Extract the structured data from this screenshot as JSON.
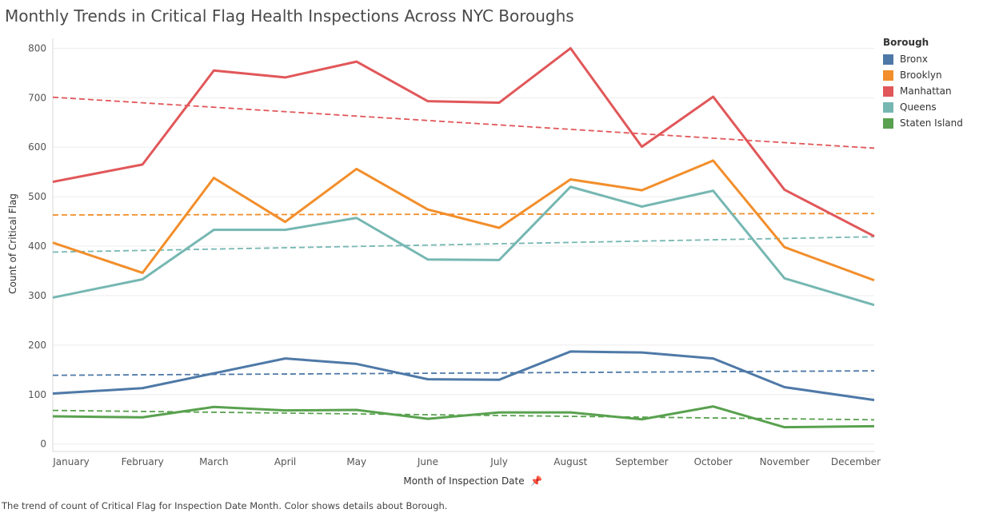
{
  "header": {
    "title": "Monthly Trends in Critical Flag Health Inspections Across NYC Boroughs",
    "caption": "The trend of count of Critical Flag for Inspection Date Month.  Color shows details about Borough."
  },
  "legend": {
    "title": "Borough"
  },
  "chart_data": {
    "type": "line",
    "title": "Monthly Trends in Critical Flag Health Inspections Across NYC Boroughs",
    "xlabel": "Month of Inspection Date",
    "ylabel": "Count of Critical Flag",
    "ylim": [
      -15,
      820
    ],
    "yticks": [
      0,
      100,
      200,
      300,
      400,
      500,
      600,
      700,
      800
    ],
    "grid": true,
    "legend_position": "right",
    "categories": [
      "January",
      "February",
      "March",
      "April",
      "May",
      "June",
      "July",
      "August",
      "September",
      "October",
      "November",
      "December"
    ],
    "series": [
      {
        "name": "Bronx",
        "color": "#4e79a7",
        "values": [
          102,
          113,
          143,
          173,
          162,
          131,
          130,
          187,
          185,
          173,
          115,
          89
        ],
        "trend": [
          139,
          148
        ]
      },
      {
        "name": "Brooklyn",
        "color": "#f28e2b",
        "values": [
          407,
          346,
          538,
          449,
          556,
          474,
          437,
          535,
          513,
          573,
          398,
          331
        ],
        "trend": [
          463,
          466
        ]
      },
      {
        "name": "Manhattan",
        "color": "#e15759",
        "values": [
          530,
          565,
          755,
          741,
          773,
          693,
          690,
          800,
          601,
          702,
          514,
          420
        ],
        "trend": [
          701,
          598
        ]
      },
      {
        "name": "Queens",
        "color": "#76b7b2",
        "values": [
          296,
          333,
          433,
          433,
          457,
          373,
          372,
          520,
          480,
          512,
          335,
          281
        ],
        "trend": [
          388,
          419
        ]
      },
      {
        "name": "Staten Island",
        "color": "#59a14f",
        "values": [
          56,
          54,
          75,
          68,
          69,
          51,
          64,
          64,
          50,
          76,
          34,
          36
        ],
        "trend": [
          68,
          49
        ]
      }
    ]
  }
}
